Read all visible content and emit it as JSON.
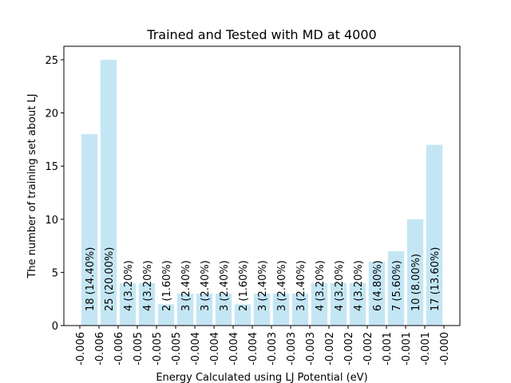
{
  "chart_data": {
    "type": "histogram",
    "title": "Trained and Tested with MD at 4000",
    "xlabel": "Energy Calculated using LJ Potential (eV)",
    "ylabel": "The number of training set about LJ",
    "bins": [
      -0.0062,
      -0.0059,
      -0.0056,
      -0.0053,
      -0.005,
      -0.0047,
      -0.0044,
      -0.0041,
      -0.0038,
      -0.0035,
      -0.0032,
      -0.0029,
      -0.0026,
      -0.0023,
      -0.002,
      -0.0017,
      -0.0014,
      -0.0011,
      -0.0008,
      -0.0005
    ],
    "values": [
      18,
      25,
      4,
      4,
      2,
      3,
      3,
      3,
      2,
      3,
      3,
      3,
      4,
      4,
      4,
      6,
      7,
      10,
      17
    ],
    "value_labels": [
      "18  (14.40%)",
      "25  (20.00%)",
      "4  (3.20%)",
      "4  (3.20%)",
      "2  (1.60%)",
      "3  (2.40%)",
      "3  (2.40%)",
      "3  (2.40%)",
      "2  (1.60%)",
      "3  (2.40%)",
      "3  (2.40%)",
      "3  (2.40%)",
      "4  (3.20%)",
      "4  (3.20%)",
      "4  (3.20%)",
      "6  (4.80%)",
      "7  (5.60%)",
      "10  (8.00%)",
      "17  (13.60%)"
    ],
    "color": "#c4e6f4",
    "xlim": [
      -0.00645,
      -0.00025
    ],
    "xticks": [
      {
        "value": -0.0062,
        "label": "-0.006"
      },
      {
        "value": -0.0059,
        "label": "-0.006"
      },
      {
        "value": -0.0056,
        "label": "-0.006"
      },
      {
        "value": -0.0053,
        "label": "-0.005"
      },
      {
        "value": -0.005,
        "label": "-0.005"
      },
      {
        "value": -0.0047,
        "label": "-0.005"
      },
      {
        "value": -0.0044,
        "label": "-0.004"
      },
      {
        "value": -0.0041,
        "label": "-0.004"
      },
      {
        "value": -0.0038,
        "label": "-0.004"
      },
      {
        "value": -0.0035,
        "label": "-0.004"
      },
      {
        "value": -0.0032,
        "label": "-0.003"
      },
      {
        "value": -0.0029,
        "label": "-0.003"
      },
      {
        "value": -0.0026,
        "label": "-0.003"
      },
      {
        "value": -0.0023,
        "label": "-0.002"
      },
      {
        "value": -0.002,
        "label": "-0.002"
      },
      {
        "value": -0.0017,
        "label": "-0.002"
      },
      {
        "value": -0.0014,
        "label": "-0.001"
      },
      {
        "value": -0.0011,
        "label": "-0.001"
      },
      {
        "value": -0.0008,
        "label": "-0.001"
      },
      {
        "value": -0.0005,
        "label": "-0.000"
      }
    ],
    "ylim": [
      0,
      26.27
    ],
    "yticks": [
      0,
      5,
      10,
      15,
      20,
      25
    ]
  }
}
